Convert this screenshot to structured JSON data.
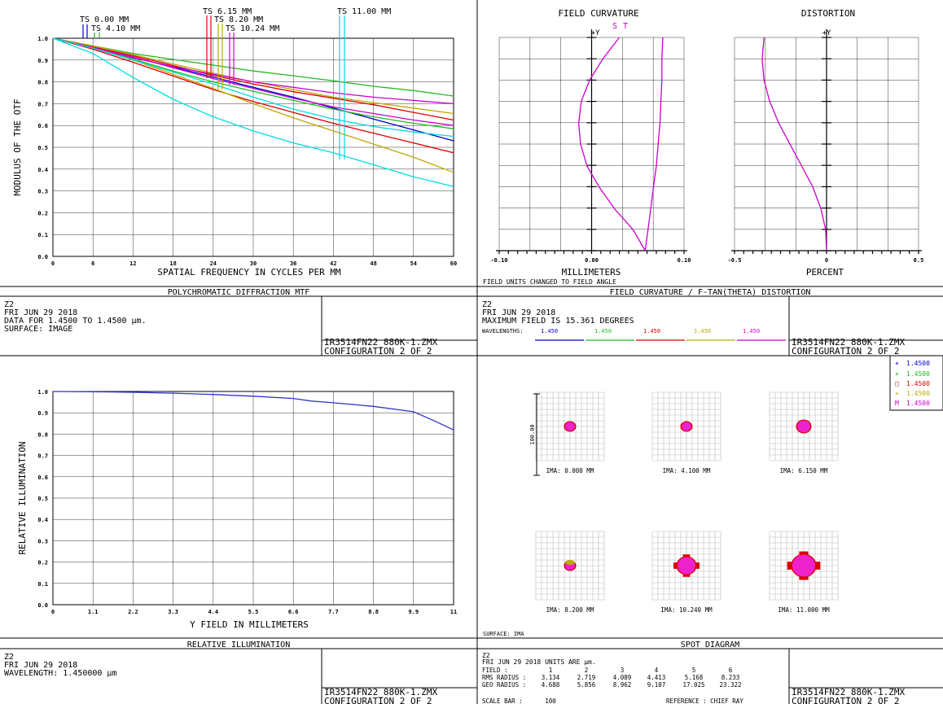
{
  "mtf": {
    "field_labels": [
      {
        "text": "TS 0.00 MM"
      },
      {
        "text": "TS 4.10 MM"
      },
      {
        "text": "TS 6.15 MM"
      },
      {
        "text": "TS 8.20 MM"
      },
      {
        "text": "TS 10.24 MM"
      },
      {
        "text": "TS 11.00 MM"
      }
    ],
    "footer_title": "POLYCHROMATIC DIFFRACTION MTF",
    "info": [
      "Z2",
      "FRI JUN 29 2018",
      "DATA FOR 1.4500 TO 1.4500 µm.",
      "SURFACE: IMAGE"
    ],
    "file": [
      "IR3514FN22_880K-1.ZMX",
      "CONFIGURATION 2 OF 2"
    ]
  },
  "fc": {
    "footer_title": "FIELD CURVATURE / F-TAN(THETA) DISTORTION",
    "info": [
      "Z2",
      "FRI JUN 29 2018",
      "MAXIMUM FIELD IS 15.361 DEGREES"
    ],
    "wavelengths_label": "WAVELENGTHS:",
    "wavelengths": [
      {
        "text": "1.450",
        "color": "#0000cc"
      },
      {
        "text": "1.450",
        "color": "#22bb22"
      },
      {
        "text": "1.450",
        "color": "#dd0000"
      },
      {
        "text": "1.450",
        "color": "#bbaa00"
      },
      {
        "text": "1.450",
        "color": "#cc00cc"
      }
    ],
    "file": [
      "IR3514FN22_880K-1.ZMX",
      "CONFIGURATION 2 OF 2"
    ]
  },
  "ri": {
    "footer_title": "RELATIVE ILLUMINATION",
    "info": [
      "Z2",
      "FRI JUN 29 2018",
      "WAVELENGTH: 1.450000 µm"
    ],
    "file": [
      "IR3514FN22_880K-1.ZMX",
      "CONFIGURATION 2 OF 2"
    ]
  },
  "spot": {
    "footer_title": "SPOT DIAGRAM",
    "surface_label": "SURFACE: IMA",
    "scale_bar": "100.00",
    "legend": [
      {
        "sym": "+",
        "text": "1.4500",
        "color": "#0000cc"
      },
      {
        "sym": "×",
        "text": "1.4500",
        "color": "#22bb22"
      },
      {
        "sym": "□",
        "text": "1.4500",
        "color": "#dd0000"
      },
      {
        "sym": "⌖",
        "text": "1.4500",
        "color": "#bbaa00"
      },
      {
        "sym": "M",
        "text": "1.4500",
        "color": "#cc00cc"
      }
    ],
    "fields": [
      {
        "label": "IMA: 0.000 MM",
        "size": "small"
      },
      {
        "label": "IMA: 4.100 MM",
        "size": "small"
      },
      {
        "label": "IMA: 6.150 MM",
        "size": "medium"
      },
      {
        "label": "IMA: 8.200 MM",
        "size": "small"
      },
      {
        "label": "IMA: 10.240 MM",
        "size": "large"
      },
      {
        "label": "IMA: 11.000 MM",
        "size": "xlarge"
      }
    ],
    "info_lines": [
      "Z2",
      "FRI JUN 29 2018  UNITS ARE µm."
    ],
    "table": [
      [
        "FIELD      :",
        "1",
        "2",
        "3",
        "4",
        "5",
        "6"
      ],
      [
        "RMS RADIUS :",
        "3.134",
        "2.719",
        "4.089",
        "4.413",
        "5.168",
        "8.233"
      ],
      [
        "GEO RADIUS :",
        "4.688",
        "5.856",
        "8.962",
        "9.107",
        "17.025",
        "23.322"
      ]
    ],
    "scale_row": [
      "SCALE BAR  :",
      "100",
      "REFERENCE  : CHIEF RAY"
    ],
    "file": [
      "IR3514FN22_880K-1.ZMX",
      "CONFIGURATION 2 OF 2"
    ]
  },
  "chart_data": [
    {
      "type": "line",
      "title": "POLYCHROMATIC DIFFRACTION MTF",
      "xlabel": "SPATIAL FREQUENCY IN CYCLES PER MM",
      "ylabel": "MODULUS OF THE OTF",
      "xlim": [
        0,
        60
      ],
      "ylim": [
        0,
        1
      ],
      "x_ticks": [
        "0",
        "6",
        "12",
        "18",
        "24",
        "30",
        "36",
        "42",
        "48",
        "54",
        "60"
      ],
      "y_ticks": [
        "0.0",
        "0.1",
        "0.2",
        "0.3",
        "0.4",
        "0.5",
        "0.6",
        "0.7",
        "0.8",
        "0.9",
        "1.0"
      ],
      "x": [
        0,
        6,
        12,
        18,
        24,
        30,
        36,
        42,
        48,
        54,
        60
      ],
      "series": [
        {
          "color": "#0000cc",
          "values": [
            1.0,
            0.956,
            0.912,
            0.868,
            0.822,
            0.775,
            0.73,
            0.68,
            0.63,
            0.58,
            0.53
          ]
        },
        {
          "color": "#22bb22",
          "values": [
            1.0,
            0.965,
            0.93,
            0.903,
            0.877,
            0.85,
            0.828,
            0.805,
            0.78,
            0.76,
            0.735
          ]
        },
        {
          "color": "#22bb22",
          "values": [
            1.0,
            0.958,
            0.905,
            0.85,
            0.8,
            0.757,
            0.715,
            0.675,
            0.64,
            0.61,
            0.585
          ]
        },
        {
          "color": "#dd0000",
          "values": [
            1.0,
            0.95,
            0.89,
            0.827,
            0.765,
            0.71,
            0.66,
            0.61,
            0.565,
            0.52,
            0.475
          ]
        },
        {
          "color": "#dd0000",
          "values": [
            1.0,
            0.96,
            0.92,
            0.875,
            0.83,
            0.79,
            0.755,
            0.725,
            0.695,
            0.66,
            0.625
          ]
        },
        {
          "color": "#bbaa00",
          "values": [
            1.0,
            0.955,
            0.9,
            0.835,
            0.77,
            0.7,
            0.635,
            0.575,
            0.515,
            0.455,
            0.385
          ]
        },
        {
          "color": "#bbaa00",
          "values": [
            1.0,
            0.965,
            0.925,
            0.882,
            0.84,
            0.8,
            0.765,
            0.73,
            0.705,
            0.68,
            0.655
          ]
        },
        {
          "color": "#cc00cc",
          "values": [
            1.0,
            0.958,
            0.91,
            0.87,
            0.835,
            0.8,
            0.775,
            0.75,
            0.73,
            0.715,
            0.7
          ]
        },
        {
          "color": "#cc00cc",
          "values": [
            1.0,
            0.957,
            0.915,
            0.865,
            0.815,
            0.77,
            0.725,
            0.685,
            0.655,
            0.625,
            0.6
          ]
        },
        {
          "color": "#00dddd",
          "values": [
            1.0,
            0.93,
            0.82,
            0.72,
            0.64,
            0.575,
            0.52,
            0.475,
            0.42,
            0.365,
            0.32
          ]
        },
        {
          "color": "#00dddd",
          "values": [
            1.0,
            0.955,
            0.9,
            0.845,
            0.79,
            0.73,
            0.675,
            0.63,
            0.595,
            0.57,
            0.55
          ]
        }
      ]
    },
    {
      "type": "line",
      "title": "FIELD CURVATURE",
      "xlabel": "MILLIMETERS",
      "note": "FIELD UNITS CHANGED TO FIELD ANGLE",
      "axis_label": "+Y",
      "curve_labels": [
        "S",
        "T"
      ],
      "xlim": [
        -0.1,
        0.1
      ],
      "ylim": [
        0,
        15.361
      ],
      "x_ticks": [
        "-0.10",
        "0.00",
        "0.10"
      ],
      "series": [
        {
          "name": "S",
          "color": "#cc00cc",
          "x": [
            0.058,
            0.061,
            0.064,
            0.067,
            0.07,
            0.072,
            0.074,
            0.075,
            0.076,
            0.076,
            0.077
          ],
          "y": [
            0,
            1.5,
            3,
            4.6,
            6.1,
            7.7,
            9.2,
            10.8,
            12.3,
            13.8,
            15.361
          ]
        },
        {
          "name": "T",
          "color": "#cc00cc",
          "x": [
            0.058,
            0.045,
            0.025,
            0.008,
            -0.005,
            -0.012,
            -0.014,
            -0.011,
            -0.002,
            0.012,
            0.03
          ],
          "y": [
            0,
            1.5,
            3,
            4.6,
            6.1,
            7.7,
            9.2,
            10.8,
            12.3,
            13.8,
            15.361
          ]
        }
      ]
    },
    {
      "type": "line",
      "title": "DISTORTION",
      "xlabel": "PERCENT",
      "axis_label": "+Y",
      "xlim": [
        -0.5,
        0.5
      ],
      "ylim": [
        0,
        15.361
      ],
      "x_ticks": [
        "-0.5",
        "0",
        "0.5"
      ],
      "series": [
        {
          "color": "#cc00cc",
          "x": [
            0,
            -0.005,
            -0.03,
            -0.075,
            -0.135,
            -0.2,
            -0.26,
            -0.31,
            -0.34,
            -0.35,
            -0.34
          ],
          "y": [
            0,
            1.5,
            3,
            4.6,
            6.1,
            7.7,
            9.2,
            10.8,
            12.3,
            13.8,
            15.361
          ]
        }
      ]
    },
    {
      "type": "line",
      "title": "RELATIVE ILLUMINATION",
      "xlabel": "Y FIELD IN MILLIMETERS",
      "ylabel": "RELATIVE ILLUMINATION",
      "xlim": [
        0,
        11
      ],
      "ylim": [
        0,
        1
      ],
      "x_ticks": [
        "0",
        "1.1",
        "2.2",
        "3.3",
        "4.4",
        "5.5",
        "6.6",
        "7.7",
        "8.8",
        "9.9",
        "11"
      ],
      "y_ticks": [
        "0.0",
        "0.1",
        "0.2",
        "0.3",
        "0.4",
        "0.5",
        "0.6",
        "0.7",
        "0.8",
        "0.9",
        "1.0"
      ],
      "series": [
        {
          "color": "#3333cc",
          "x": [
            0,
            1.1,
            2.2,
            3.3,
            4.4,
            5.5,
            6.6,
            7.1,
            7.7,
            8.8,
            9.9,
            10.5,
            11
          ],
          "y": [
            1.0,
            0.999,
            0.996,
            0.992,
            0.986,
            0.978,
            0.967,
            0.955,
            0.947,
            0.93,
            0.905,
            0.86,
            0.82
          ]
        }
      ]
    }
  ]
}
